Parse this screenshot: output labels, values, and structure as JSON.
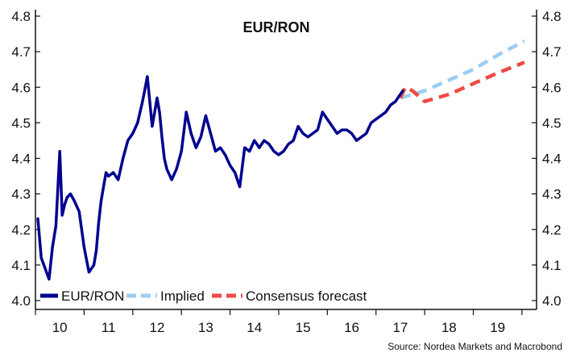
{
  "chart_data": {
    "type": "line",
    "title": "EUR/RON",
    "xlabel": "",
    "ylabel": "",
    "x_ticks": [
      "10",
      "11",
      "12",
      "13",
      "14",
      "15",
      "16",
      "17",
      "18",
      "19"
    ],
    "x_range": [
      2009.5,
      2019.8
    ],
    "ylim": [
      4.0,
      4.8
    ],
    "y_ticks": [
      "4.0",
      "4.1",
      "4.2",
      "4.3",
      "4.4",
      "4.5",
      "4.6",
      "4.7",
      "4.8"
    ],
    "grid": false,
    "legend_position": "bottom-left",
    "series": [
      {
        "name": "EUR/RON",
        "color": "#00008f",
        "style": "solid",
        "x": [
          2009.55,
          2009.62,
          2009.7,
          2009.78,
          2009.85,
          2009.92,
          2010.0,
          2010.05,
          2010.1,
          2010.15,
          2010.22,
          2010.3,
          2010.4,
          2010.5,
          2010.6,
          2010.7,
          2010.75,
          2010.8,
          2010.85,
          2010.9,
          2010.95,
          2011.0,
          2011.1,
          2011.2,
          2011.3,
          2011.4,
          2011.5,
          2011.6,
          2011.7,
          2011.8,
          2011.9,
          2011.95,
          2012.0,
          2012.05,
          2012.1,
          2012.15,
          2012.2,
          2012.3,
          2012.4,
          2012.5,
          2012.6,
          2012.7,
          2012.8,
          2012.9,
          2013.0,
          2013.1,
          2013.2,
          2013.3,
          2013.4,
          2013.5,
          2013.6,
          2013.7,
          2013.8,
          2013.9,
          2014.0,
          2014.05,
          2014.1,
          2014.2,
          2014.3,
          2014.4,
          2014.5,
          2014.6,
          2014.7,
          2014.8,
          2014.9,
          2015.0,
          2015.1,
          2015.2,
          2015.3,
          2015.4,
          2015.5,
          2015.6,
          2015.7,
          2015.8,
          2015.9,
          2016.0,
          2016.1,
          2016.2,
          2016.3,
          2016.4,
          2016.5,
          2016.6,
          2016.7,
          2016.8,
          2016.9,
          2017.0,
          2017.05
        ],
        "values": [
          4.23,
          4.12,
          4.09,
          4.06,
          4.15,
          4.21,
          4.42,
          4.24,
          4.27,
          4.29,
          4.3,
          4.28,
          4.25,
          4.15,
          4.08,
          4.1,
          4.14,
          4.22,
          4.28,
          4.32,
          4.36,
          4.35,
          4.36,
          4.34,
          4.4,
          4.45,
          4.47,
          4.5,
          4.56,
          4.63,
          4.49,
          4.53,
          4.57,
          4.53,
          4.46,
          4.4,
          4.37,
          4.34,
          4.37,
          4.42,
          4.53,
          4.47,
          4.43,
          4.46,
          4.52,
          4.47,
          4.42,
          4.43,
          4.41,
          4.38,
          4.36,
          4.32,
          4.43,
          4.42,
          4.45,
          4.44,
          4.43,
          4.45,
          4.44,
          4.42,
          4.41,
          4.42,
          4.44,
          4.45,
          4.49,
          4.47,
          4.46,
          4.47,
          4.48,
          4.53,
          4.51,
          4.49,
          4.47,
          4.48,
          4.48,
          4.47,
          4.45,
          4.46,
          4.47,
          4.5,
          4.51,
          4.52,
          4.53,
          4.55,
          4.56,
          4.58,
          4.59
        ]
      },
      {
        "name": "Implied",
        "color": "#9dcdf2",
        "style": "dashed",
        "x": [
          2017.0,
          2017.5,
          2018.0,
          2018.5,
          2019.0,
          2019.55
        ],
        "values": [
          4.57,
          4.59,
          4.62,
          4.65,
          4.69,
          4.73
        ]
      },
      {
        "name": "Consensus forecast",
        "color": "#ee4a45",
        "style": "dashed",
        "x": [
          2017.0,
          2017.1,
          2017.25,
          2017.5,
          2018.0,
          2018.5,
          2019.0,
          2019.55
        ],
        "values": [
          4.57,
          4.6,
          4.59,
          4.56,
          4.58,
          4.61,
          4.64,
          4.67
        ]
      }
    ]
  },
  "footer": {
    "source": "Source: Nordea Markets and Macrobond"
  }
}
